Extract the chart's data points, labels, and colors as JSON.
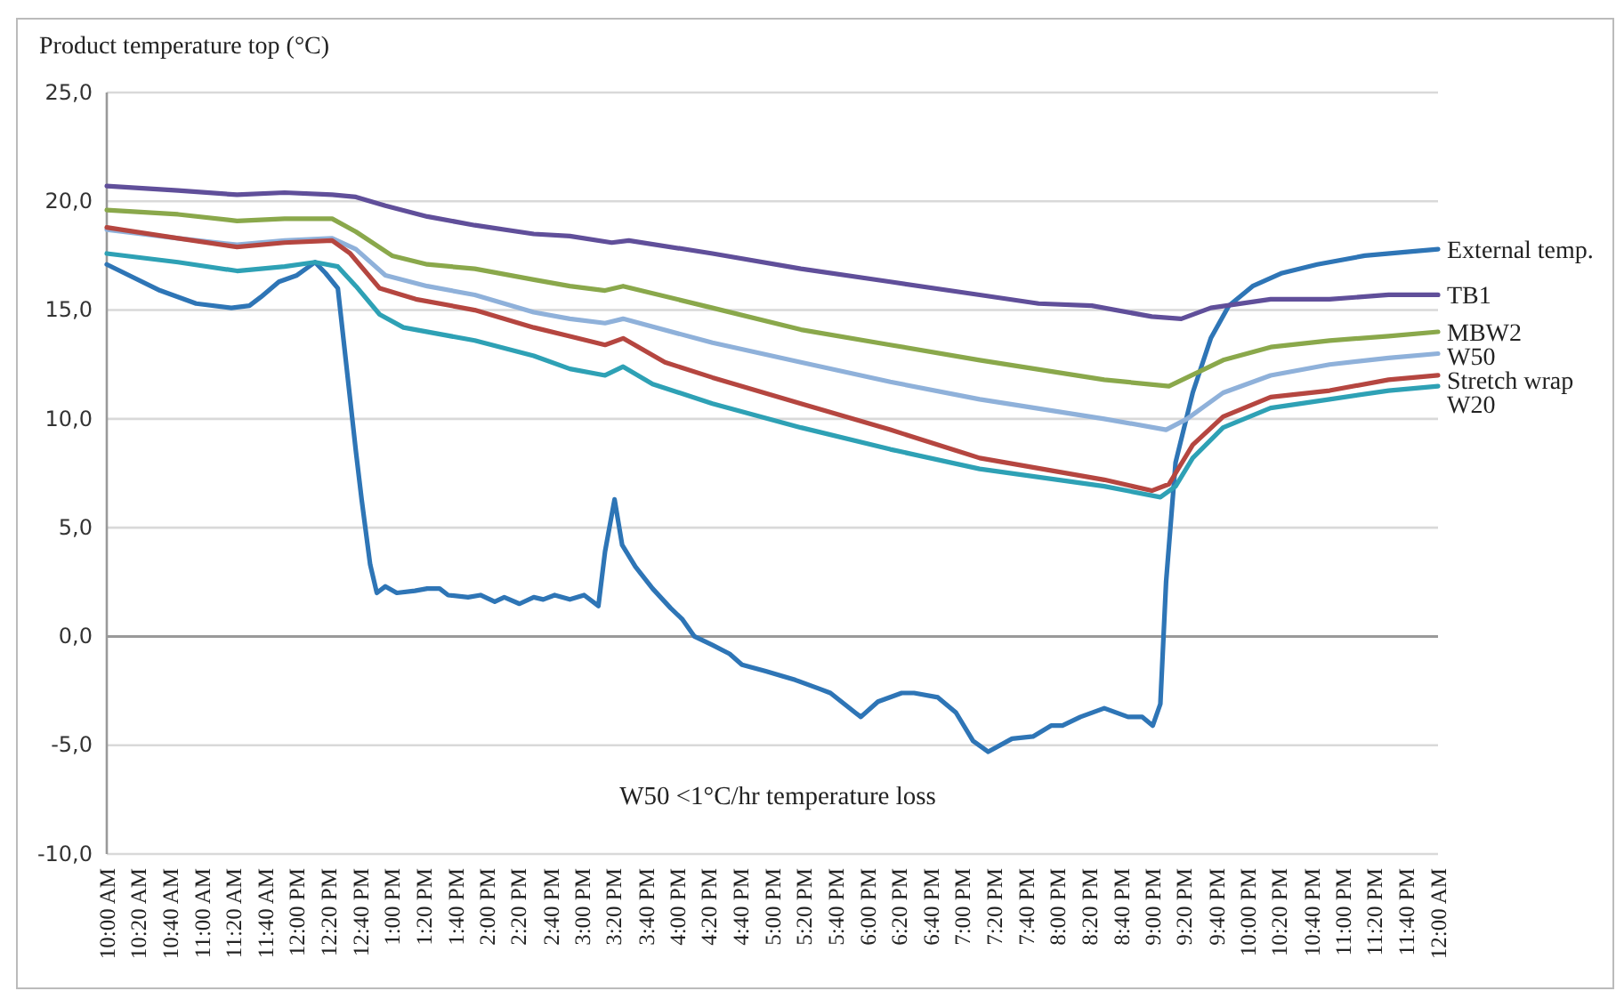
{
  "chart_data": {
    "type": "line",
    "ylabel": "Product temperature top (°C)",
    "annotations": [
      "W50 <1°C/hr temperature loss"
    ],
    "xlim": [
      10,
      24
    ],
    "xticks": [
      {
        "value": 10,
        "label": "10:00 AM"
      },
      {
        "value": 10.33,
        "label": "10:20 AM"
      },
      {
        "value": 10.67,
        "label": "10:40 AM"
      },
      {
        "value": 11,
        "label": "11:00 AM"
      },
      {
        "value": 11.33,
        "label": "11:20 AM"
      },
      {
        "value": 11.67,
        "label": "11:40 AM"
      },
      {
        "value": 12,
        "label": "12:00 PM"
      },
      {
        "value": 12.33,
        "label": "12:20 PM"
      },
      {
        "value": 12.67,
        "label": "12:40 PM"
      },
      {
        "value": 13,
        "label": "1:00 PM"
      },
      {
        "value": 13.33,
        "label": "1:20 PM"
      },
      {
        "value": 13.67,
        "label": "1:40 PM"
      },
      {
        "value": 14,
        "label": "2:00 PM"
      },
      {
        "value": 14.33,
        "label": "2:20 PM"
      },
      {
        "value": 14.67,
        "label": "2:40 PM"
      },
      {
        "value": 15,
        "label": "3:00 PM"
      },
      {
        "value": 15.33,
        "label": "3:20 PM"
      },
      {
        "value": 15.67,
        "label": "3:40 PM"
      },
      {
        "value": 16,
        "label": "4:00 PM"
      },
      {
        "value": 16.33,
        "label": "4:20 PM"
      },
      {
        "value": 16.67,
        "label": "4:40 PM"
      },
      {
        "value": 17,
        "label": "5:00 PM"
      },
      {
        "value": 17.33,
        "label": "5:20 PM"
      },
      {
        "value": 17.67,
        "label": "5:40 PM"
      },
      {
        "value": 18,
        "label": "6:00 PM"
      },
      {
        "value": 18.33,
        "label": "6:20 PM"
      },
      {
        "value": 18.67,
        "label": "6:40 PM"
      },
      {
        "value": 19,
        "label": "7:00 PM"
      },
      {
        "value": 19.33,
        "label": "7:20 PM"
      },
      {
        "value": 19.67,
        "label": "7:40 PM"
      },
      {
        "value": 20,
        "label": "8:00 PM"
      },
      {
        "value": 20.33,
        "label": "8:20 PM"
      },
      {
        "value": 20.67,
        "label": "8:40 PM"
      },
      {
        "value": 21,
        "label": "9:00 PM"
      },
      {
        "value": 21.33,
        "label": "9:20 PM"
      },
      {
        "value": 21.67,
        "label": "9:40 PM"
      },
      {
        "value": 22,
        "label": "10:00 PM"
      },
      {
        "value": 22.33,
        "label": "10:20 PM"
      },
      {
        "value": 22.67,
        "label": "10:40 PM"
      },
      {
        "value": 23,
        "label": "11:00 PM"
      },
      {
        "value": 23.33,
        "label": "11:20 PM"
      },
      {
        "value": 23.67,
        "label": "11:40 PM"
      },
      {
        "value": 24,
        "label": "12:00 AM"
      }
    ],
    "ylim": [
      -10,
      25
    ],
    "yticks": [
      {
        "value": -10,
        "label": "-10,0"
      },
      {
        "value": -5,
        "label": "-5,0"
      },
      {
        "value": 0,
        "label": "0,0"
      },
      {
        "value": 5,
        "label": "5,0"
      },
      {
        "value": 10,
        "label": "10,0"
      },
      {
        "value": 15,
        "label": "15,0"
      },
      {
        "value": 20,
        "label": "20,0"
      },
      {
        "value": 25,
        "label": "25,0"
      }
    ],
    "grid": "y",
    "legend": false,
    "marker": "none",
    "line_style": "solid",
    "series": [
      {
        "name": "External temp.",
        "color": "#2e75b6",
        "x": [
          10,
          10.56,
          10.94,
          11.31,
          11.5,
          11.62,
          11.81,
          12.0,
          12.19,
          12.3,
          12.43,
          12.62,
          12.68,
          12.77,
          12.84,
          12.93,
          13.05,
          13.24,
          13.37,
          13.5,
          13.59,
          13.8,
          13.93,
          14.08,
          14.18,
          14.34,
          14.49,
          14.59,
          14.71,
          14.87,
          15.02,
          15.17,
          15.24,
          15.34,
          15.42,
          15.56,
          15.74,
          15.93,
          16.05,
          16.18,
          16.37,
          16.55,
          16.68,
          16.93,
          17.24,
          17.49,
          17.61,
          17.87,
          17.93,
          18.11,
          18.36,
          18.49,
          18.74,
          18.93,
          19.11,
          19.27,
          19.52,
          19.74,
          19.93,
          20.05,
          20.24,
          20.49,
          20.74,
          20.89,
          21.0,
          21.08,
          21.14,
          21.24,
          21.42,
          21.61,
          21.8,
          22.05,
          22.36,
          22.73,
          23.23,
          23.73,
          24.0
        ],
        "values": [
          17.1,
          15.9,
          15.3,
          15.1,
          15.2,
          15.6,
          16.3,
          16.6,
          17.2,
          16.7,
          16.0,
          8.5,
          6.3,
          3.3,
          2.0,
          2.3,
          2.0,
          2.1,
          2.2,
          2.2,
          1.9,
          1.8,
          1.9,
          1.6,
          1.8,
          1.5,
          1.8,
          1.7,
          1.9,
          1.7,
          1.9,
          1.4,
          3.9,
          6.3,
          4.2,
          3.2,
          2.2,
          1.3,
          0.8,
          0.0,
          -0.4,
          -0.8,
          -1.3,
          -1.6,
          -2.0,
          -2.4,
          -2.6,
          -3.5,
          -3.7,
          -3.0,
          -2.6,
          -2.6,
          -2.8,
          -3.5,
          -4.8,
          -5.3,
          -4.7,
          -4.6,
          -4.1,
          -4.1,
          -3.7,
          -3.3,
          -3.7,
          -3.7,
          -4.1,
          -3.1,
          2.5,
          8.0,
          11.2,
          13.7,
          15.2,
          16.1,
          16.7,
          17.1,
          17.5,
          17.7,
          17.8
        ]
      },
      {
        "name": "TB1",
        "color": "#604f9a",
        "x": [
          10,
          10.75,
          11.37,
          11.87,
          12.37,
          12.62,
          12.93,
          13.37,
          13.87,
          14.49,
          14.87,
          15.31,
          15.49,
          16.37,
          17.3,
          18.24,
          19.18,
          19.8,
          20.36,
          20.99,
          21.3,
          21.61,
          22.24,
          22.86,
          23.48,
          24.0
        ],
        "values": [
          20.7,
          20.5,
          20.3,
          20.4,
          20.3,
          20.2,
          19.8,
          19.3,
          18.9,
          18.5,
          18.4,
          18.1,
          18.2,
          17.6,
          16.9,
          16.3,
          15.7,
          15.3,
          15.2,
          14.7,
          14.6,
          15.1,
          15.5,
          15.5,
          15.7,
          15.7
        ]
      },
      {
        "name": "MBW2",
        "color": "#8aa84b",
        "x": [
          10,
          10.75,
          11.37,
          11.87,
          12.37,
          12.62,
          13.0,
          13.37,
          13.87,
          14.49,
          14.87,
          15.24,
          15.43,
          16.37,
          17.3,
          18.24,
          19.18,
          20.49,
          21.17,
          21.36,
          21.74,
          22.24,
          22.86,
          23.48,
          24.0
        ],
        "values": [
          19.6,
          19.4,
          19.1,
          19.2,
          19.2,
          18.6,
          17.5,
          17.1,
          16.9,
          16.4,
          16.1,
          15.9,
          16.1,
          15.1,
          14.1,
          13.4,
          12.7,
          11.8,
          11.5,
          11.9,
          12.7,
          13.3,
          13.6,
          13.8,
          14.0
        ]
      },
      {
        "name": "W50",
        "color": "#8fb1da",
        "x": [
          10,
          10.75,
          11.37,
          11.87,
          12.37,
          12.62,
          12.93,
          13.37,
          13.87,
          14.49,
          14.87,
          15.24,
          15.43,
          16.37,
          17.3,
          18.24,
          19.18,
          20.49,
          21.14,
          21.36,
          21.74,
          22.24,
          22.86,
          23.48,
          24.0
        ],
        "values": [
          18.7,
          18.3,
          18.0,
          18.2,
          18.3,
          17.8,
          16.6,
          16.1,
          15.7,
          14.9,
          14.6,
          14.4,
          14.6,
          13.5,
          12.6,
          11.7,
          10.9,
          10.0,
          9.5,
          10.0,
          11.2,
          12.0,
          12.5,
          12.8,
          13.0
        ]
      },
      {
        "name": "Stretch wrap",
        "color": "#b54640",
        "x": [
          10,
          10.75,
          11.37,
          11.87,
          12.37,
          12.56,
          12.87,
          13.25,
          13.87,
          14.49,
          14.87,
          15.24,
          15.43,
          15.87,
          16.37,
          17.3,
          18.24,
          19.18,
          20.49,
          20.99,
          21.17,
          21.42,
          21.74,
          22.24,
          22.86,
          23.48,
          24.0
        ],
        "values": [
          18.8,
          18.3,
          17.9,
          18.1,
          18.2,
          17.6,
          16.0,
          15.5,
          15.0,
          14.2,
          13.8,
          13.4,
          13.7,
          12.6,
          11.9,
          10.7,
          9.5,
          8.2,
          7.2,
          6.7,
          7.0,
          8.8,
          10.1,
          11.0,
          11.3,
          11.8,
          12.0
        ]
      },
      {
        "name": "W20",
        "color": "#2ea1b5",
        "x": [
          10,
          10.75,
          11.37,
          11.87,
          12.19,
          12.43,
          12.62,
          12.87,
          13.12,
          13.87,
          14.49,
          14.87,
          15.24,
          15.43,
          15.74,
          16.37,
          17.3,
          18.24,
          19.18,
          20.49,
          21.08,
          21.24,
          21.42,
          21.74,
          22.24,
          22.86,
          23.48,
          24.0
        ],
        "values": [
          17.6,
          17.2,
          16.8,
          17.0,
          17.2,
          17.0,
          16.1,
          14.8,
          14.2,
          13.6,
          12.9,
          12.3,
          12.0,
          12.4,
          11.6,
          10.7,
          9.6,
          8.6,
          7.7,
          6.9,
          6.4,
          6.9,
          8.2,
          9.6,
          10.5,
          10.9,
          11.3,
          11.5
        ]
      }
    ]
  }
}
